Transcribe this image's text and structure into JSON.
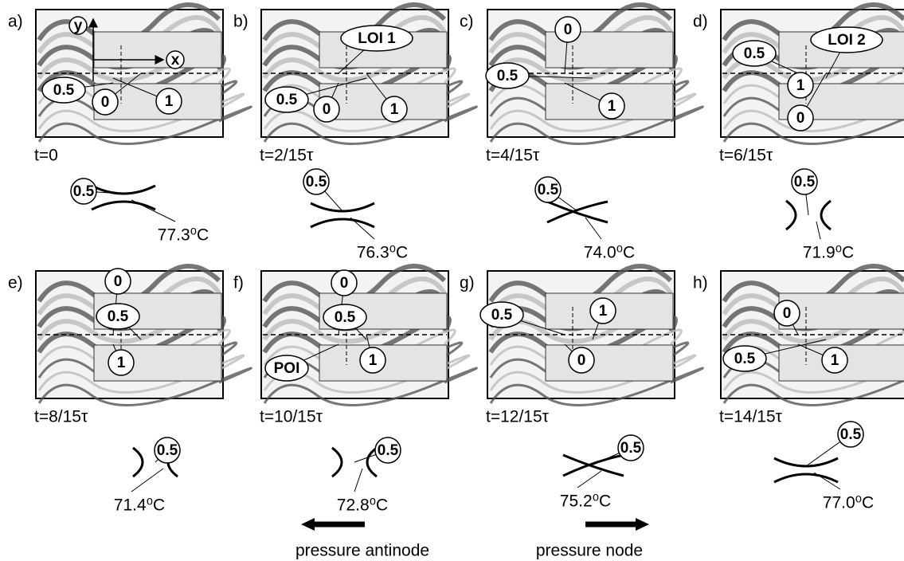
{
  "panels": [
    {
      "label": "a)",
      "time": "t=0",
      "callouts": [
        "y",
        "x",
        "0.5",
        "0",
        "1"
      ],
      "diagram_label": "0.5",
      "temperature": "77.3⁰C"
    },
    {
      "label": "b)",
      "time": "t=2/15τ",
      "callouts": [
        "LOI 1",
        "0.5",
        "0",
        "1"
      ],
      "diagram_label": "0.5",
      "temperature": "76.3⁰C"
    },
    {
      "label": "c)",
      "time": "t=4/15τ",
      "callouts": [
        "0",
        "0.5",
        "1"
      ],
      "diagram_label": "0.5",
      "temperature": "74.0⁰C"
    },
    {
      "label": "d)",
      "time": "t=6/15τ",
      "callouts": [
        "0.5",
        "LOI 2",
        "1",
        "0"
      ],
      "diagram_label": "0.5",
      "temperature": "71.9⁰C"
    },
    {
      "label": "e)",
      "time": "t=8/15τ",
      "callouts": [
        "0",
        "0.5",
        "1"
      ],
      "diagram_label": "0.5",
      "temperature": "71.4⁰C"
    },
    {
      "label": "f)",
      "time": "t=10/15τ",
      "callouts": [
        "0",
        "0.5",
        "POI",
        "1"
      ],
      "diagram_label": "0.5",
      "temperature": "72.8⁰C"
    },
    {
      "label": "g)",
      "time": "t=12/15τ",
      "callouts": [
        "0.5",
        "1",
        "0"
      ],
      "diagram_label": "0.5",
      "temperature": "75.2⁰C"
    },
    {
      "label": "h)",
      "time": "t=14/15τ",
      "callouts": [
        "0",
        "0.5",
        "1"
      ],
      "diagram_label": "0.5",
      "temperature": "77.0⁰C"
    }
  ],
  "footer": [
    "pressure antinode",
    "pressure node"
  ]
}
